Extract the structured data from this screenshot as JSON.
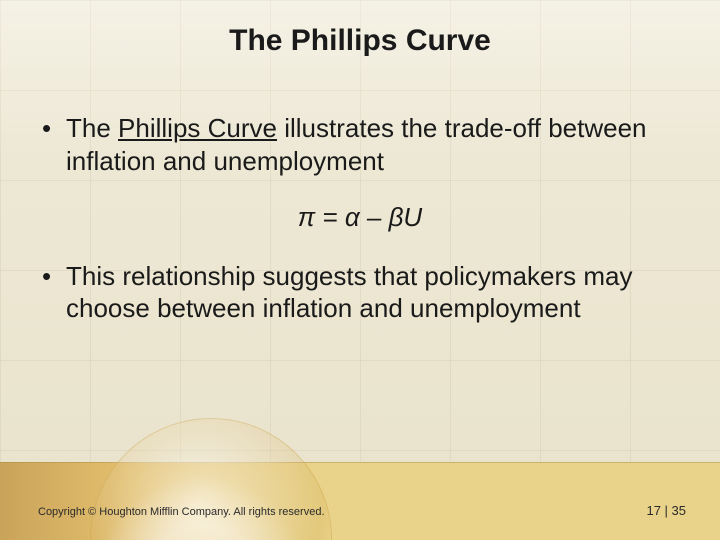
{
  "colors": {
    "background": "#efead8",
    "grid_line": "#beb496",
    "text": "#1a1a1a",
    "footer_gradient_left": "#caa35a",
    "footer_gradient_mid": "#e3c06e",
    "footer_gradient_right": "#e9d38a"
  },
  "typography": {
    "title_fontsize_pt": 22,
    "body_fontsize_pt": 20,
    "footer_fontsize_pt": 8,
    "font_family": "Arial"
  },
  "title": "The Phillips Curve",
  "bullets": [
    {
      "prefix": "The ",
      "underlined": "Phillips Curve",
      "suffix": " illustrates the trade-off between inflation and unemployment"
    },
    {
      "text": "This relationship suggests that policymakers may choose between inflation and unemployment"
    }
  ],
  "equation": "π = α – βU",
  "footer": {
    "copyright": "Copyright © Houghton Mifflin Company.  All rights reserved.",
    "page": "17 | 35"
  }
}
